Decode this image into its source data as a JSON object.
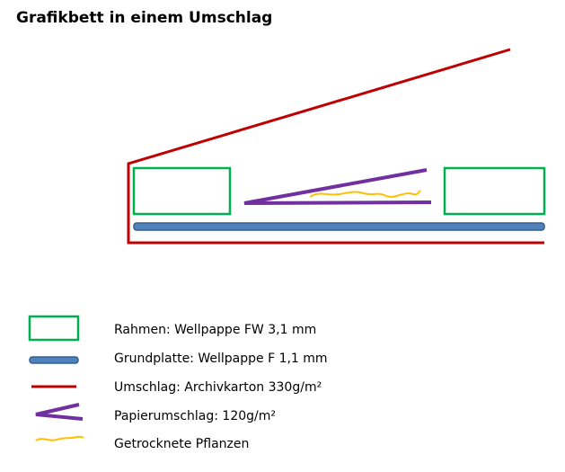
{
  "header": {
    "title": "Grafikbett  in einem Umschlag"
  },
  "legend": {
    "items": [
      {
        "label": "Rahmen: Wellpappe  FW 3,1 mm"
      },
      {
        "label": "Grundplatte:  Wellpappe  F 1,1 mm"
      },
      {
        "label": "Umschlag: Archivkarton  330g/m²"
      },
      {
        "label": "Papierumschlag:  120g/m²"
      },
      {
        "label": "Getrocknete Pflanzen"
      }
    ]
  }
}
